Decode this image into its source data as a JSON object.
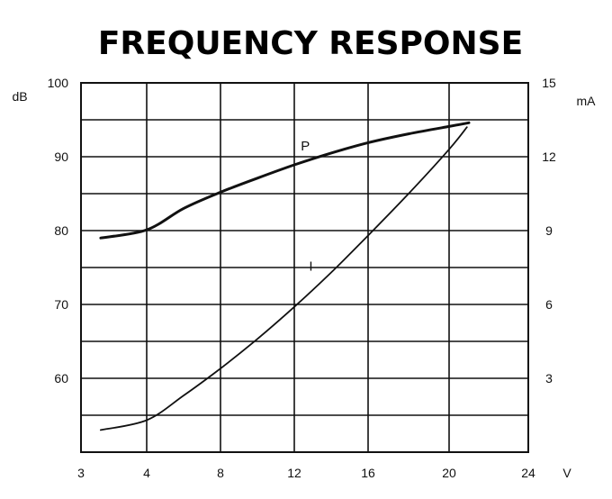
{
  "chart_data": {
    "type": "line",
    "title": "FREQUENCY RESPONSE",
    "xlabel": "V",
    "ylabel": "dB",
    "y2label": "mA",
    "x_ticks": [
      "3",
      "4",
      "8",
      "12",
      "16",
      "20",
      "24"
    ],
    "y_ticks": [
      "100",
      "90",
      "80",
      "70",
      "60"
    ],
    "y2_ticks": [
      "15",
      "12",
      "9",
      "6",
      "3"
    ],
    "xlim": [
      3,
      24
    ],
    "ylim": [
      50,
      100
    ],
    "y2lim": [
      0,
      15
    ],
    "grid": true,
    "series": [
      {
        "name": "P",
        "axis": "left",
        "color": "#111111",
        "x": [
          3.3,
          4,
          6,
          8,
          10,
          12,
          14,
          16,
          18,
          20,
          21
        ],
        "y": [
          79,
          80.1,
          83,
          85.2,
          87.1,
          88.9,
          90.5,
          91.9,
          93.1,
          94.1,
          94.6
        ]
      },
      {
        "name": "I",
        "axis": "right",
        "color": "#111111",
        "x": [
          3.3,
          4,
          6,
          8,
          10,
          12,
          14,
          16,
          18,
          20,
          20.9
        ],
        "y": [
          0.9,
          1.3,
          2.3,
          3.4,
          4.6,
          5.9,
          7.3,
          8.8,
          10.5,
          12.3,
          13.2
        ]
      }
    ]
  }
}
